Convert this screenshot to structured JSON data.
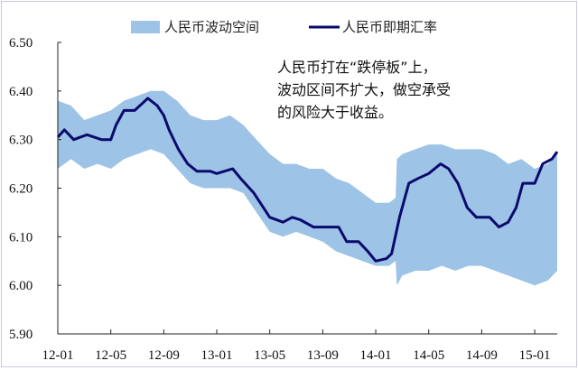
{
  "chart_data": {
    "type": "area",
    "title": "",
    "xlabel": "",
    "ylabel": "",
    "x_unit": "months since 2012-01",
    "ylim": [
      5.9,
      6.5
    ],
    "yticks": [
      "6.50",
      "6.40",
      "6.30",
      "6.20",
      "6.10",
      "6.00",
      "5.90"
    ],
    "ytick_values": [
      6.5,
      6.4,
      6.3,
      6.2,
      6.1,
      6.0,
      5.9
    ],
    "xticks": [
      "12-01",
      "12-05",
      "12-09",
      "13-01",
      "13-05",
      "13-09",
      "14-01",
      "14-05",
      "14-09",
      "15-01"
    ],
    "xtick_values": [
      0,
      4,
      8,
      12,
      16,
      20,
      24,
      28,
      32,
      36
    ],
    "xlim": [
      0,
      37.7
    ],
    "grid": false,
    "legend_position": "top-center",
    "legend": [
      "人民币波动空间",
      "人民币即期汇率"
    ],
    "colors": {
      "band": "#9dc3e6",
      "line": "#0a0a6e"
    },
    "series": [
      {
        "name": "人民币波动空间",
        "kind": "band",
        "x": [
          0,
          1,
          2,
          3,
          4,
          5,
          6,
          7,
          8,
          9,
          10,
          11,
          12,
          13,
          14,
          15,
          16,
          17,
          18,
          19,
          20,
          21,
          22,
          23,
          24,
          25,
          25.5,
          25.6,
          26,
          27,
          28,
          29,
          30,
          31,
          32,
          33,
          34,
          35,
          36,
          37,
          37.7
        ],
        "low": [
          6.24,
          6.26,
          6.24,
          6.25,
          6.24,
          6.26,
          6.27,
          6.28,
          6.27,
          6.24,
          6.21,
          6.2,
          6.2,
          6.2,
          6.19,
          6.15,
          6.11,
          6.1,
          6.11,
          6.1,
          6.09,
          6.07,
          6.06,
          6.05,
          6.04,
          6.04,
          6.05,
          6.0,
          6.02,
          6.03,
          6.03,
          6.04,
          6.03,
          6.04,
          6.04,
          6.03,
          6.02,
          6.01,
          6.0,
          6.01,
          6.03
        ],
        "high": [
          6.38,
          6.37,
          6.34,
          6.35,
          6.36,
          6.38,
          6.39,
          6.4,
          6.4,
          6.38,
          6.35,
          6.34,
          6.34,
          6.35,
          6.33,
          6.3,
          6.27,
          6.25,
          6.25,
          6.24,
          6.24,
          6.22,
          6.21,
          6.19,
          6.17,
          6.17,
          6.18,
          6.26,
          6.27,
          6.28,
          6.29,
          6.29,
          6.28,
          6.28,
          6.28,
          6.27,
          6.25,
          6.26,
          6.24,
          6.25,
          6.27
        ]
      },
      {
        "name": "人民币即期汇率",
        "kind": "line",
        "x": [
          0,
          0.5,
          1.2,
          2.2,
          3.3,
          4,
          4.4,
          5,
          5.8,
          6.4,
          6.8,
          7.5,
          8,
          8.4,
          9.1,
          9.8,
          10.5,
          11.5,
          12,
          13.2,
          13.8,
          14.8,
          16,
          17,
          17.7,
          18.3,
          19.3,
          20,
          21.2,
          21.8,
          22.7,
          23.4,
          24,
          24.8,
          25.2,
          25.8,
          26.5,
          27.2,
          28,
          28.9,
          29.5,
          30.2,
          30.9,
          31.6,
          32,
          32.6,
          33.3,
          34,
          34.6,
          35.1,
          36,
          36.6,
          37.3,
          37.7
        ],
        "y": [
          6.305,
          6.32,
          6.3,
          6.31,
          6.3,
          6.3,
          6.33,
          6.36,
          6.36,
          6.375,
          6.385,
          6.37,
          6.35,
          6.32,
          6.28,
          6.25,
          6.235,
          6.235,
          6.23,
          6.24,
          6.22,
          6.19,
          6.14,
          6.13,
          6.14,
          6.135,
          6.12,
          6.12,
          6.12,
          6.09,
          6.09,
          6.07,
          6.05,
          6.055,
          6.065,
          6.14,
          6.21,
          6.22,
          6.23,
          6.25,
          6.24,
          6.21,
          6.16,
          6.14,
          6.14,
          6.14,
          6.12,
          6.13,
          6.16,
          6.21,
          6.21,
          6.25,
          6.26,
          6.275
        ]
      }
    ]
  },
  "annotation": {
    "lines": [
      "人民币打在“跌停板”上，",
      "波动区间不扩大，做空承受",
      "的风险大于收益。"
    ]
  }
}
